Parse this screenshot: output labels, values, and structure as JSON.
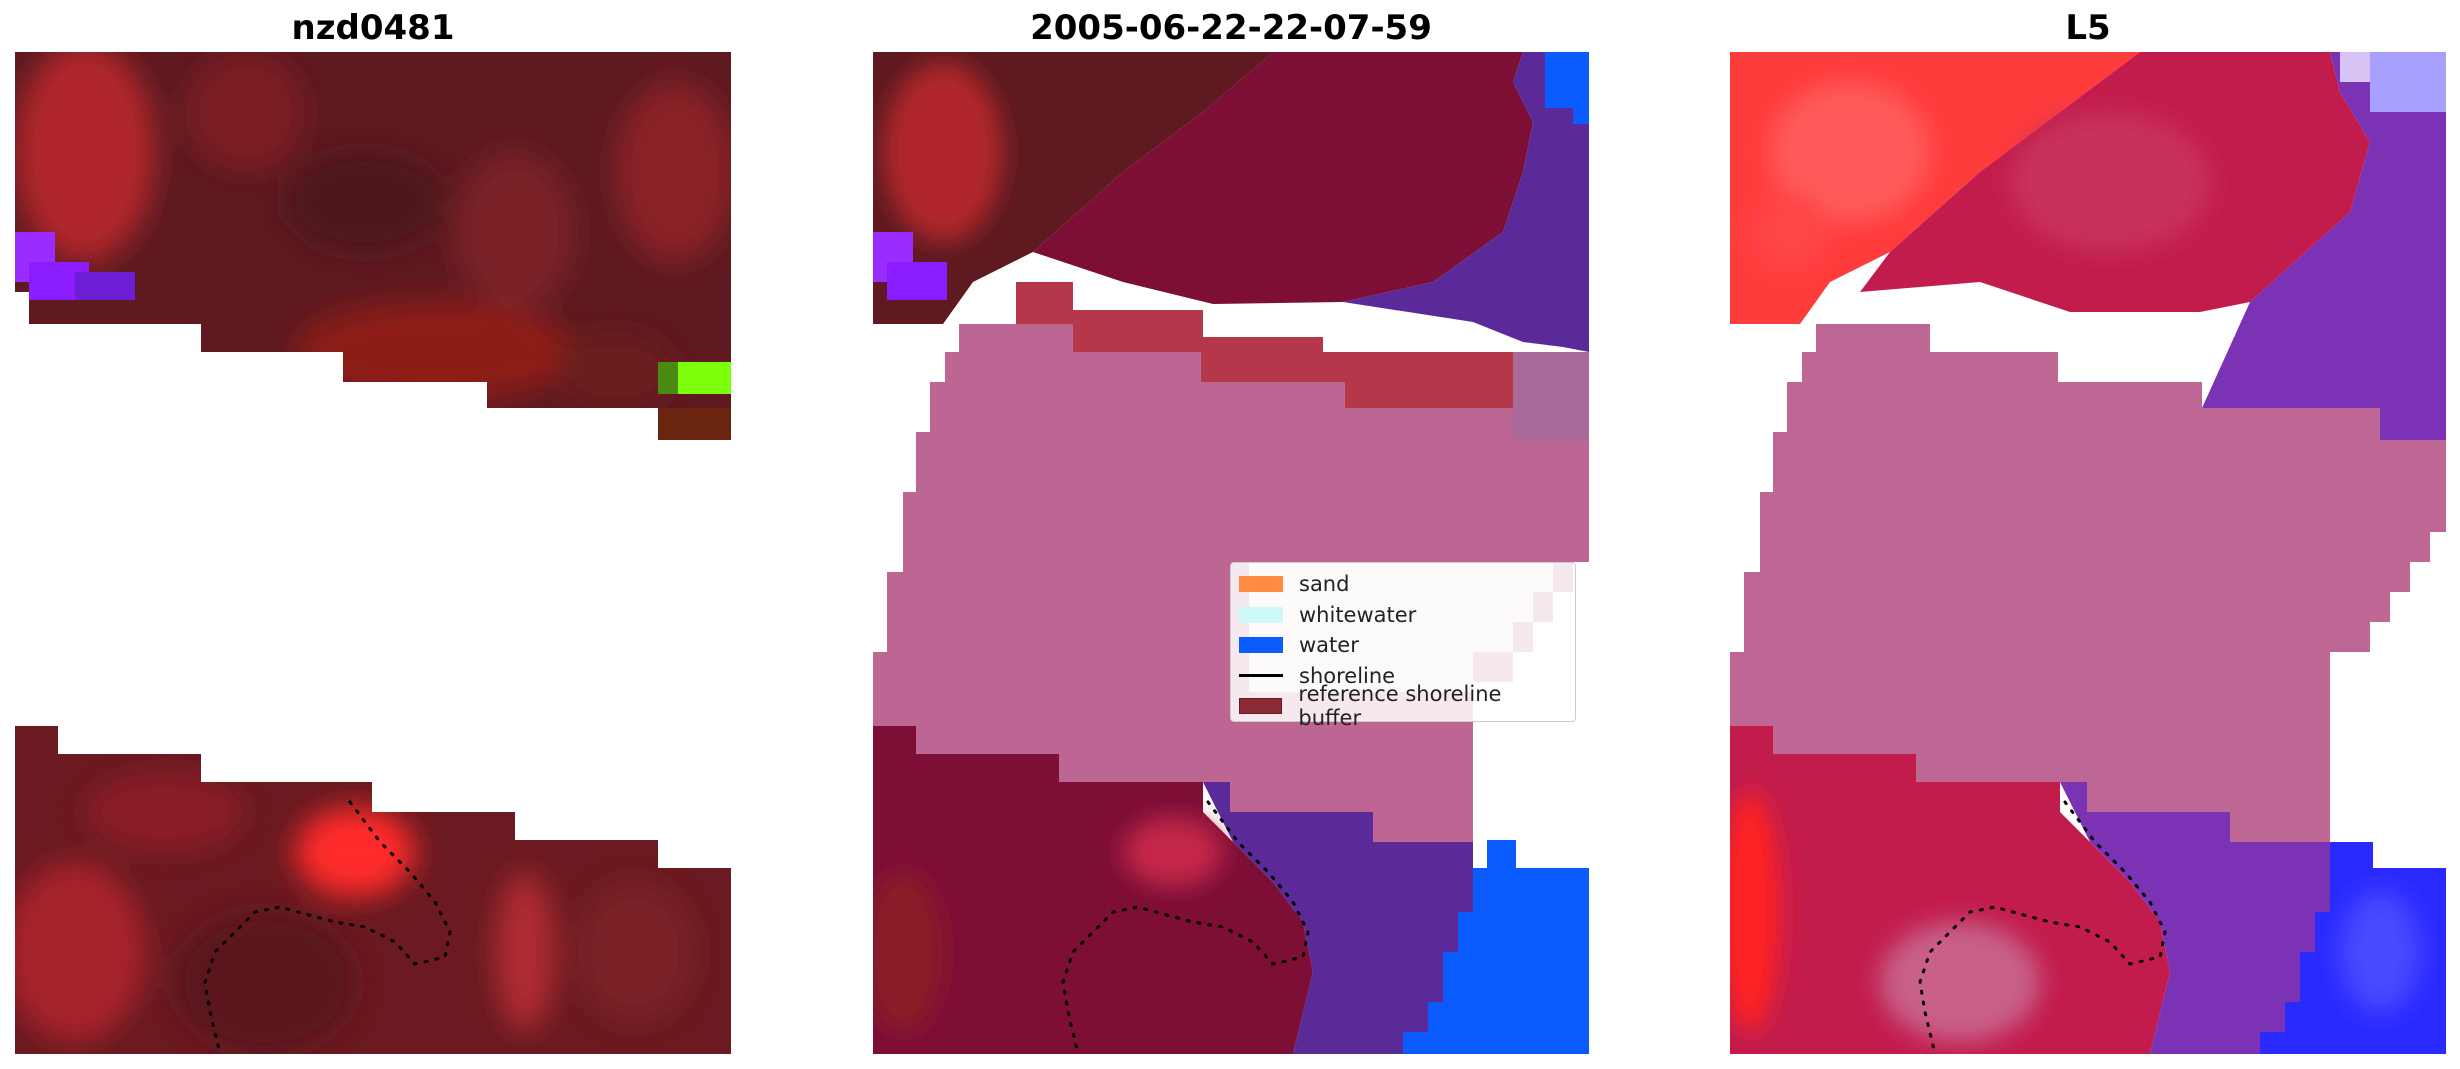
{
  "panels": [
    {
      "title": "nzd0481"
    },
    {
      "title": "2005-06-22-22-07-59"
    },
    {
      "title": "L5"
    }
  ],
  "legend": {
    "items": [
      {
        "label": "sand",
        "color": "#ff8c42",
        "kind": "patch"
      },
      {
        "label": "whitewater",
        "color": "#cef9f7",
        "kind": "patch"
      },
      {
        "label": "water",
        "color": "#0a5cff",
        "kind": "patch"
      },
      {
        "label": "shoreline",
        "color": "#000000",
        "kind": "line"
      },
      {
        "label": "reference shoreline buffer",
        "color": "#8b2a34",
        "kind": "patch"
      }
    ]
  },
  "colors": {
    "rgb_dark": "#5a1a22",
    "rgb_red": "#a8242c",
    "rgb_bright_red": "#ff2b2b",
    "rgb_purple": "#8a22ff",
    "rgb_green": "#7cff0a",
    "class_maroon": "#7d0e36",
    "class_purple": "#5a2a99",
    "class_water": "#0a5cff",
    "class_buffer_red": "#b4384a",
    "class_pink": "#bd6694",
    "class_pink_light": "#efdfe7",
    "index_red": "#ff3c3c",
    "index_crimson": "#c21c4c",
    "index_purple": "#7c32b4",
    "index_blue": "#2a2aff",
    "index_pink": "#be6694"
  }
}
